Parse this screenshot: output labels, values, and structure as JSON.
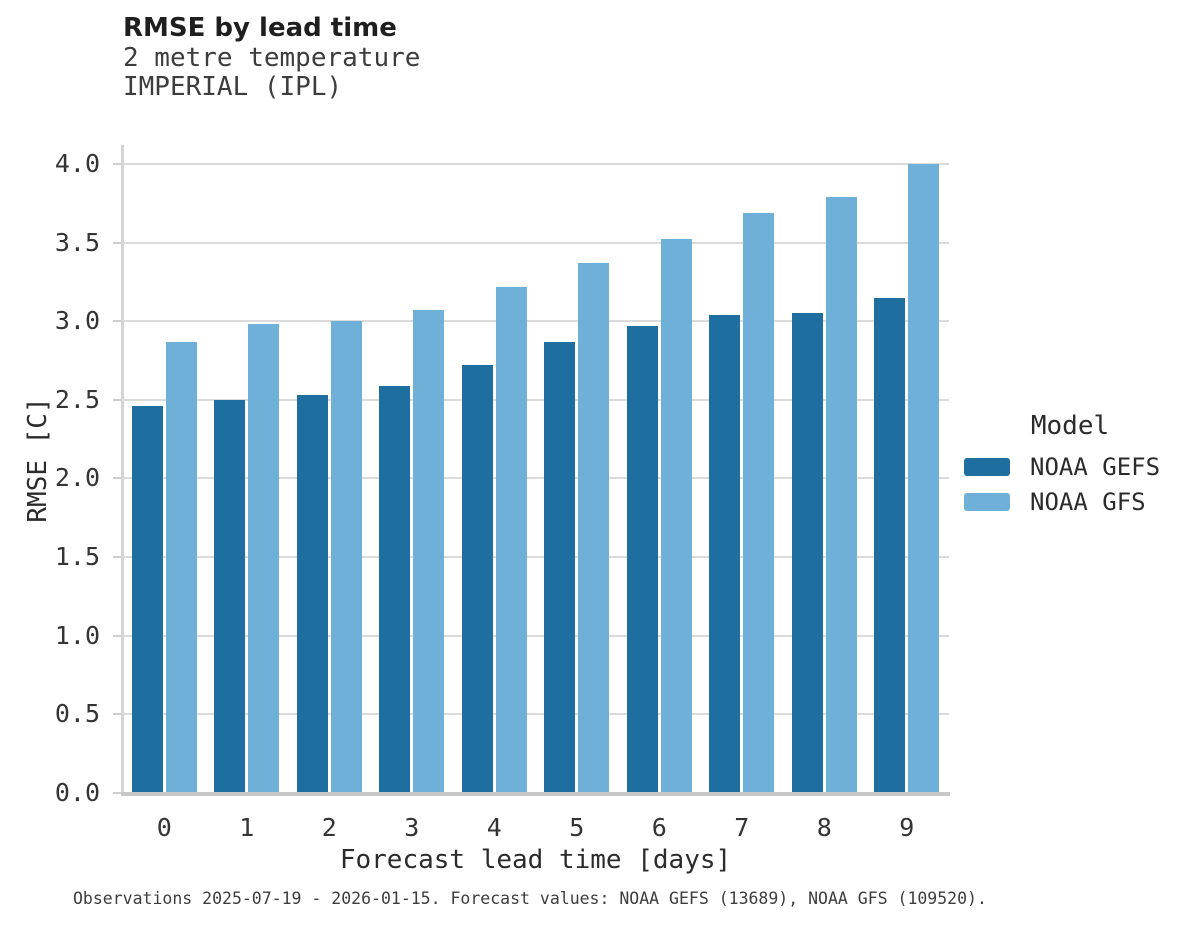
{
  "caption": "Observations 2025-07-19 - 2026-01-15. Forecast values: NOAA GEFS (13689), NOAA GFS (109520).",
  "style": {
    "grid_color": "#dbdbdb",
    "axis_line_color": "#c8c8c8",
    "spine_color": "#d4d4d4",
    "tick_color": "#cfcfcf",
    "series_dark_blue": "#1e6f9f",
    "series_light_blue": "#6fb0d9"
  },
  "chart_data": {
    "type": "bar",
    "title": "RMSE by lead time",
    "subtitle_lines": [
      "2 metre temperature",
      "IMPERIAL (IPL)"
    ],
    "xlabel": "Forecast lead time [days]",
    "ylabel": "RMSE [C]",
    "categories": [
      "0",
      "1",
      "2",
      "3",
      "4",
      "5",
      "6",
      "7",
      "8",
      "9"
    ],
    "series": [
      {
        "name": "NOAA GEFS",
        "color": "#1e6f9f",
        "values": [
          2.46,
          2.5,
          2.53,
          2.59,
          2.72,
          2.87,
          2.97,
          3.04,
          3.05,
          3.15
        ]
      },
      {
        "name": "NOAA GFS",
        "color": "#6fb0d9",
        "values": [
          2.87,
          2.98,
          3.0,
          3.07,
          3.22,
          3.37,
          3.52,
          3.69,
          3.79,
          4.0
        ]
      }
    ],
    "ylim": [
      0,
      4.12
    ],
    "yticks": [
      0.0,
      0.5,
      1.0,
      1.5,
      2.0,
      2.5,
      3.0,
      3.5,
      4.0
    ],
    "grid": true,
    "legend_title": "Model",
    "legend_position": "right"
  }
}
